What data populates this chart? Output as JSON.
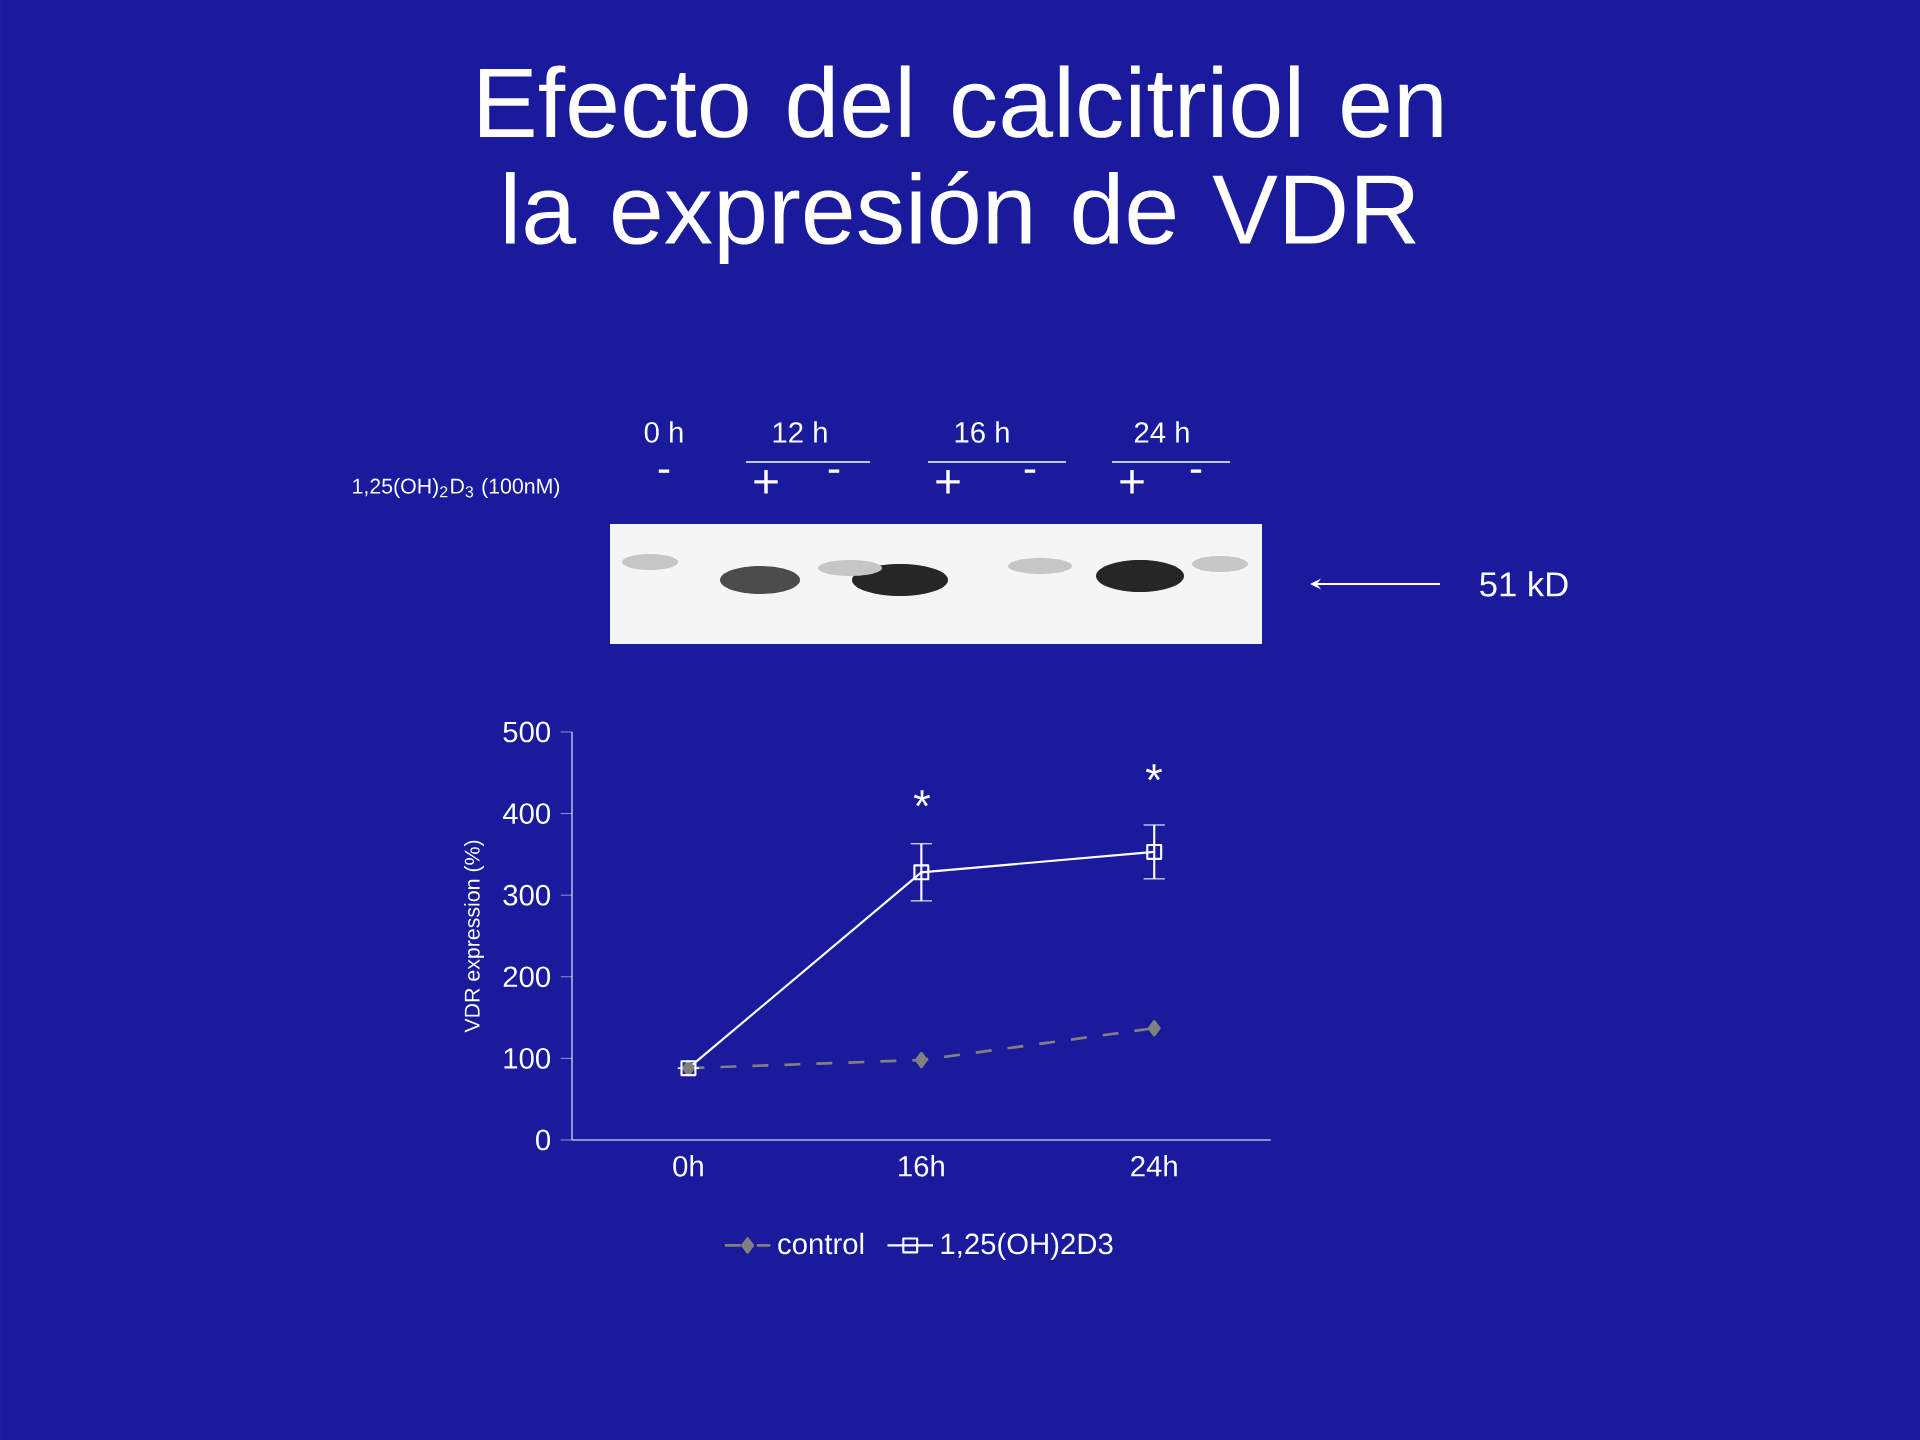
{
  "chart_data": {
    "type": "line",
    "title": "Efecto del calcitriol en la expresión de VDR",
    "ylabel": "VDR expression (%)",
    "categories": [
      "0h",
      "16h",
      "24h"
    ],
    "series": [
      {
        "name": "control",
        "color": "#808080",
        "values": [
          88,
          98,
          137
        ],
        "marker": "diamond",
        "line_style": "dashed"
      },
      {
        "name": "1,25(OH)2D3",
        "color": "#ffffff",
        "values": [
          88,
          328,
          353
        ],
        "errors": [
          null,
          35,
          33
        ],
        "marker": "square",
        "line_style": "solid"
      }
    ],
    "ylim": [
      0,
      500
    ],
    "yticks": [
      0,
      100,
      200,
      300,
      400,
      500
    ],
    "legend": "bottom",
    "annotations": [
      "0 h",
      "12 h",
      "16 h",
      "24 h",
      "1,25(OH)$_{2}$D$_{3}$ (100nM)",
      "-",
      "+",
      "-",
      "+",
      "-",
      "+",
      "-",
      "51 kD",
      "*",
      "*"
    ]
  }
}
